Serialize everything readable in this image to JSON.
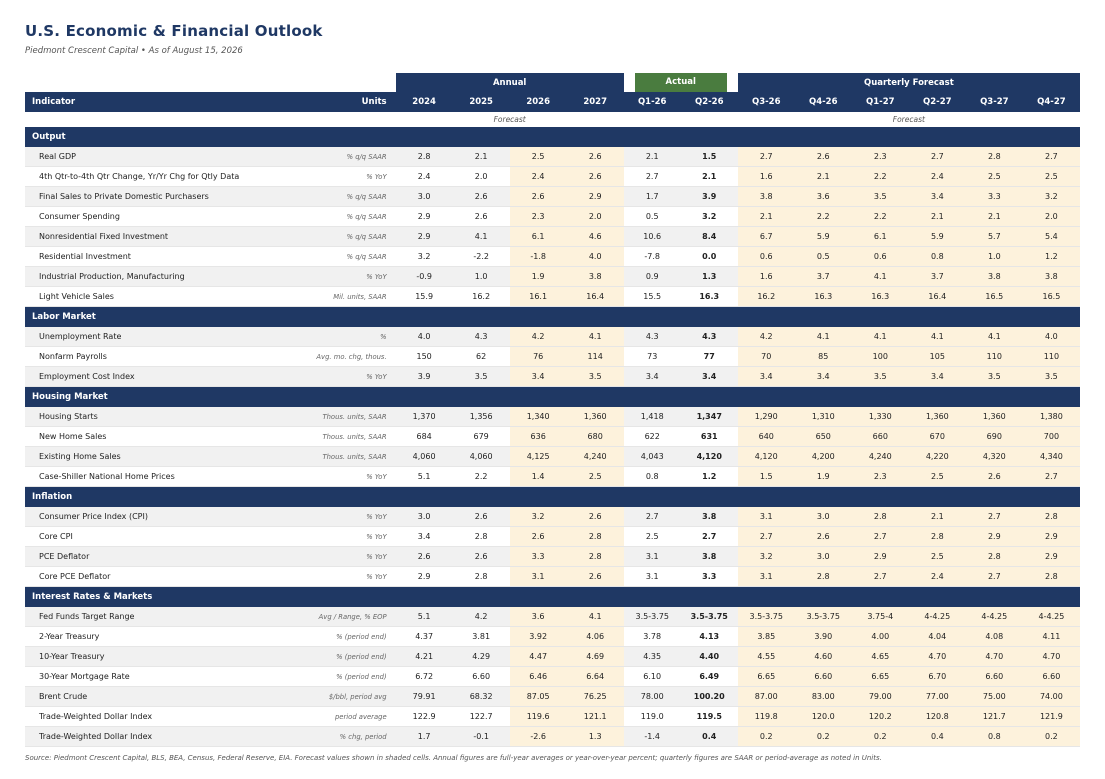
{
  "title": "U.S. Economic & Financial Outlook",
  "subtitle": "Piedmont Crescent Capital  •  As of August 15, 2026",
  "group_headers": {
    "annual": "Annual",
    "actual": "Actual",
    "quarterly": "Quarterly Forecast"
  },
  "columns": {
    "indicator": "Indicator",
    "units": "Units",
    "periods": [
      "2024",
      "2025",
      "2026",
      "2027",
      "Q1-26",
      "Q2-26",
      "Q3-26",
      "Q4-26",
      "Q1-27",
      "Q2-27",
      "Q3-27",
      "Q4-27"
    ]
  },
  "forecast_labels": {
    "annual": "Forecast",
    "quarterly": "Forecast"
  },
  "sections": [
    {
      "name": "Output",
      "rows": [
        {
          "indicator": "Real GDP",
          "units": "% q/q SAAR",
          "values": [
            "2.8",
            "2.1",
            "2.5",
            "2.6",
            "2.1",
            "1.5",
            "2.7",
            "2.6",
            "2.3",
            "2.7",
            "2.8",
            "2.7"
          ]
        },
        {
          "indicator": "4th Qtr-to-4th Qtr Change, Yr/Yr Chg for Qtly Data",
          "units": "% YoY",
          "values": [
            "2.4",
            "2.0",
            "2.4",
            "2.6",
            "2.7",
            "2.1",
            "1.6",
            "2.1",
            "2.2",
            "2.4",
            "2.5",
            "2.5"
          ]
        },
        {
          "indicator": "Final Sales to Private Domestic Purchasers",
          "units": "% q/q SAAR",
          "values": [
            "3.0",
            "2.6",
            "2.6",
            "2.9",
            "1.7",
            "3.9",
            "3.8",
            "3.6",
            "3.5",
            "3.4",
            "3.3",
            "3.2"
          ]
        },
        {
          "indicator": "Consumer Spending",
          "units": "% q/q SAAR",
          "values": [
            "2.9",
            "2.6",
            "2.3",
            "2.0",
            "0.5",
            "3.2",
            "2.1",
            "2.2",
            "2.2",
            "2.1",
            "2.1",
            "2.0"
          ]
        },
        {
          "indicator": "Nonresidential Fixed Investment",
          "units": "% q/q SAAR",
          "values": [
            "2.9",
            "4.1",
            "6.1",
            "4.6",
            "10.6",
            "8.4",
            "6.7",
            "5.9",
            "6.1",
            "5.9",
            "5.7",
            "5.4"
          ]
        },
        {
          "indicator": "Residential Investment",
          "units": "% q/q SAAR",
          "values": [
            "3.2",
            "-2.2",
            "-1.8",
            "4.0",
            "-7.8",
            "0.0",
            "0.6",
            "0.5",
            "0.6",
            "0.8",
            "1.0",
            "1.2"
          ]
        },
        {
          "indicator": "Industrial Production, Manufacturing",
          "units": "% YoY",
          "values": [
            "-0.9",
            "1.0",
            "1.9",
            "3.8",
            "0.9",
            "1.3",
            "1.6",
            "3.7",
            "4.1",
            "3.7",
            "3.8",
            "3.8"
          ]
        },
        {
          "indicator": "Light Vehicle Sales",
          "units": "Mil. units, SAAR",
          "values": [
            "15.9",
            "16.2",
            "16.1",
            "16.4",
            "15.5",
            "16.3",
            "16.2",
            "16.3",
            "16.3",
            "16.4",
            "16.5",
            "16.5"
          ]
        }
      ]
    },
    {
      "name": "Labor Market",
      "rows": [
        {
          "indicator": "Unemployment Rate",
          "units": "%",
          "values": [
            "4.0",
            "4.3",
            "4.2",
            "4.1",
            "4.3",
            "4.3",
            "4.2",
            "4.1",
            "4.1",
            "4.1",
            "4.1",
            "4.0"
          ]
        },
        {
          "indicator": "Nonfarm Payrolls",
          "units": "Avg. mo. chg, thous.",
          "values": [
            "150",
            "62",
            "76",
            "114",
            "73",
            "77",
            "70",
            "85",
            "100",
            "105",
            "110",
            "110"
          ]
        },
        {
          "indicator": "Employment Cost Index",
          "units": "% YoY",
          "values": [
            "3.9",
            "3.5",
            "3.4",
            "3.5",
            "3.4",
            "3.4",
            "3.4",
            "3.4",
            "3.5",
            "3.4",
            "3.5",
            "3.5"
          ]
        }
      ]
    },
    {
      "name": "Housing Market",
      "rows": [
        {
          "indicator": "Housing Starts",
          "units": "Thous. units, SAAR",
          "values": [
            "1,370",
            "1,356",
            "1,340",
            "1,360",
            "1,418",
            "1,347",
            "1,290",
            "1,310",
            "1,330",
            "1,360",
            "1,360",
            "1,380"
          ]
        },
        {
          "indicator": "New Home Sales",
          "units": "Thous. units, SAAR",
          "values": [
            "684",
            "679",
            "636",
            "680",
            "622",
            "631",
            "640",
            "650",
            "660",
            "670",
            "690",
            "700"
          ]
        },
        {
          "indicator": "Existing Home Sales",
          "units": "Thous. units, SAAR",
          "values": [
            "4,060",
            "4,060",
            "4,125",
            "4,240",
            "4,043",
            "4,120",
            "4,120",
            "4,200",
            "4,240",
            "4,220",
            "4,320",
            "4,340"
          ]
        },
        {
          "indicator": "Case-Shiller National Home Prices",
          "units": "% YoY",
          "values": [
            "5.1",
            "2.2",
            "1.4",
            "2.5",
            "0.8",
            "1.2",
            "1.5",
            "1.9",
            "2.3",
            "2.5",
            "2.6",
            "2.7"
          ]
        }
      ]
    },
    {
      "name": "Inflation",
      "rows": [
        {
          "indicator": "Consumer Price Index (CPI)",
          "units": "% YoY",
          "values": [
            "3.0",
            "2.6",
            "3.2",
            "2.6",
            "2.7",
            "3.8",
            "3.1",
            "3.0",
            "2.8",
            "2.1",
            "2.7",
            "2.8"
          ]
        },
        {
          "indicator": "Core CPI",
          "units": "% YoY",
          "values": [
            "3.4",
            "2.8",
            "2.6",
            "2.8",
            "2.5",
            "2.7",
            "2.7",
            "2.6",
            "2.7",
            "2.8",
            "2.9",
            "2.9"
          ]
        },
        {
          "indicator": "PCE Deflator",
          "units": "% YoY",
          "values": [
            "2.6",
            "2.6",
            "3.3",
            "2.8",
            "3.1",
            "3.8",
            "3.2",
            "3.0",
            "2.9",
            "2.5",
            "2.8",
            "2.9"
          ]
        },
        {
          "indicator": "Core PCE Deflator",
          "units": "% YoY",
          "values": [
            "2.9",
            "2.8",
            "3.1",
            "2.6",
            "3.1",
            "3.3",
            "3.1",
            "2.8",
            "2.7",
            "2.4",
            "2.7",
            "2.8"
          ]
        }
      ]
    },
    {
      "name": "Interest Rates & Markets",
      "rows": [
        {
          "indicator": "Fed Funds Target Range",
          "units": "Avg / Range, % EOP",
          "values": [
            "5.1",
            "4.2",
            "3.6",
            "4.1",
            "3.5-3.75",
            "3.5-3.75",
            "3.5-3.75",
            "3.5-3.75",
            "3.75-4",
            "4-4.25",
            "4-4.25",
            "4-4.25"
          ]
        },
        {
          "indicator": "2-Year Treasury",
          "units": "% (period end)",
          "values": [
            "4.37",
            "3.81",
            "3.92",
            "4.06",
            "3.78",
            "4.13",
            "3.85",
            "3.90",
            "4.00",
            "4.04",
            "4.08",
            "4.11"
          ]
        },
        {
          "indicator": "10-Year Treasury",
          "units": "% (period end)",
          "values": [
            "4.21",
            "4.29",
            "4.47",
            "4.69",
            "4.35",
            "4.40",
            "4.55",
            "4.60",
            "4.65",
            "4.70",
            "4.70",
            "4.70"
          ]
        },
        {
          "indicator": "30-Year Mortgage Rate",
          "units": "% (period end)",
          "values": [
            "6.72",
            "6.60",
            "6.46",
            "6.64",
            "6.10",
            "6.49",
            "6.65",
            "6.60",
            "6.65",
            "6.70",
            "6.60",
            "6.60"
          ]
        },
        {
          "indicator": "Brent Crude",
          "units": "$/bbl, period avg",
          "values": [
            "79.91",
            "68.32",
            "87.05",
            "76.25",
            "78.00",
            "100.20",
            "87.00",
            "83.00",
            "79.00",
            "77.00",
            "75.00",
            "74.00"
          ]
        },
        {
          "indicator": "Trade-Weighted Dollar Index",
          "units": "period average",
          "values": [
            "122.9",
            "122.7",
            "119.6",
            "121.1",
            "119.0",
            "119.5",
            "119.8",
            "120.0",
            "120.2",
            "120.8",
            "121.7",
            "121.9"
          ]
        },
        {
          "indicator": "Trade-Weighted Dollar Index",
          "units": "% chg, period",
          "values": [
            "1.7",
            "-0.1",
            "-2.6",
            "1.3",
            "-1.4",
            "0.4",
            "0.2",
            "0.2",
            "0.2",
            "0.4",
            "0.8",
            "0.2"
          ]
        }
      ]
    }
  ],
  "source": "Source: Piedmont Crescent Capital, BLS, BEA, Census, Federal Reserve, EIA. Forecast values shown in shaded cells. Annual figures are full-year averages or year-over-year percent; quarterly figures are SAAR or period-average as noted in Units.",
  "colors": {
    "navy": "#1f3864",
    "actual_green": "#4a7c3f",
    "forecast_shade": "#fdf2dc",
    "alt_row": "#f1f1f1"
  }
}
